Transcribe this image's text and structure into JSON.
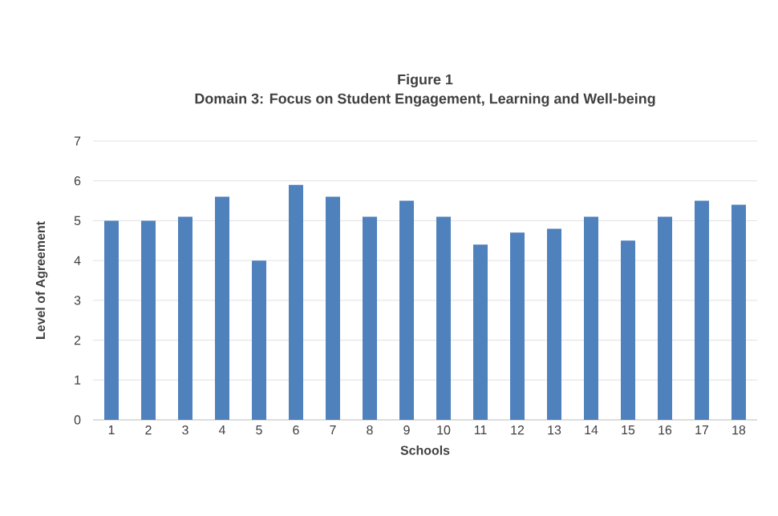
{
  "chart_data": {
    "type": "bar",
    "title": "Figure 1",
    "subtitle": "Domain 3: Focus on Student Engagement, Learning and Well-being",
    "xlabel": "Schools",
    "ylabel": "Level of Agreement",
    "categories": [
      "1",
      "2",
      "3",
      "4",
      "5",
      "6",
      "7",
      "8",
      "9",
      "10",
      "11",
      "12",
      "13",
      "14",
      "15",
      "16",
      "17",
      "18"
    ],
    "values": [
      5,
      5,
      5.1,
      5.6,
      4,
      5.9,
      5.6,
      5.1,
      5.5,
      5.1,
      4.4,
      4.7,
      4.8,
      5.1,
      4.5,
      5.1,
      5.5,
      5.4
    ],
    "color": "#4f81bd",
    "ylim": [
      0,
      7
    ],
    "yticks": [
      0,
      1,
      2,
      3,
      4,
      5,
      6,
      7
    ],
    "grid": "y"
  }
}
